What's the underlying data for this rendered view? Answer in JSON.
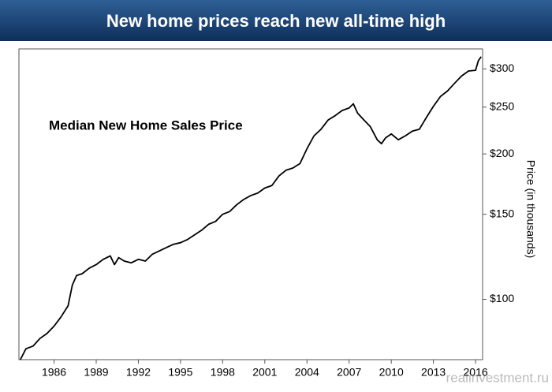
{
  "header": {
    "title": "New home prices reach new all-time high"
  },
  "chart_data": {
    "type": "line",
    "annotation": "Median New Home Sales Price",
    "ylabel": "Price (in thousands)",
    "watermark": "realinvestment.ru",
    "log_y": true,
    "xlim": [
      1983.5,
      2016.5
    ],
    "xticks": [
      1986,
      1989,
      1992,
      1995,
      1998,
      2001,
      2004,
      2007,
      2010,
      2013,
      2016
    ],
    "ylim": [
      75,
      330
    ],
    "yticks": [
      {
        "value": 100,
        "label": "$100"
      },
      {
        "value": 150,
        "label": "$150"
      },
      {
        "value": 200,
        "label": "$200"
      },
      {
        "value": 250,
        "label": "$250"
      },
      {
        "value": 300,
        "label": "$300"
      }
    ],
    "series": [
      {
        "name": "Median New Home Sales Price",
        "color": "#000000",
        "x": [
          1983.6,
          1984,
          1984.5,
          1985,
          1985.5,
          1986,
          1986.5,
          1987,
          1987.3,
          1987.6,
          1988,
          1988.5,
          1989,
          1989.5,
          1990,
          1990.3,
          1990.6,
          1991,
          1991.5,
          1992,
          1992.5,
          1993,
          1993.5,
          1994,
          1994.5,
          1995,
          1995.5,
          1996,
          1996.5,
          1997,
          1997.5,
          1998,
          1998.5,
          1999,
          1999.5,
          2000,
          2000.5,
          2001,
          2001.5,
          2002,
          2002.5,
          2003,
          2003.5,
          2004,
          2004.5,
          2005,
          2005.5,
          2006,
          2006.5,
          2007,
          2007.3,
          2007.6,
          2008,
          2008.5,
          2009,
          2009.3,
          2009.6,
          2010,
          2010.5,
          2011,
          2011.5,
          2012,
          2012.5,
          2013,
          2013.5,
          2014,
          2014.5,
          2015,
          2015.5,
          2016,
          2016.2,
          2016.4
        ],
        "values": [
          75,
          79,
          80,
          83,
          85,
          88,
          92,
          97,
          107,
          112,
          113,
          116,
          118,
          121,
          123,
          118,
          122,
          120,
          119,
          121,
          120,
          124,
          126,
          128,
          130,
          131,
          133,
          136,
          139,
          143,
          145,
          150,
          152,
          157,
          161,
          164,
          166,
          170,
          172,
          180,
          185,
          187,
          191,
          205,
          218,
          225,
          235,
          240,
          246,
          249,
          254,
          243,
          236,
          228,
          214,
          210,
          216,
          220,
          214,
          218,
          223,
          225,
          238,
          251,
          263,
          270,
          280,
          290,
          297,
          298,
          312,
          318
        ]
      }
    ]
  }
}
